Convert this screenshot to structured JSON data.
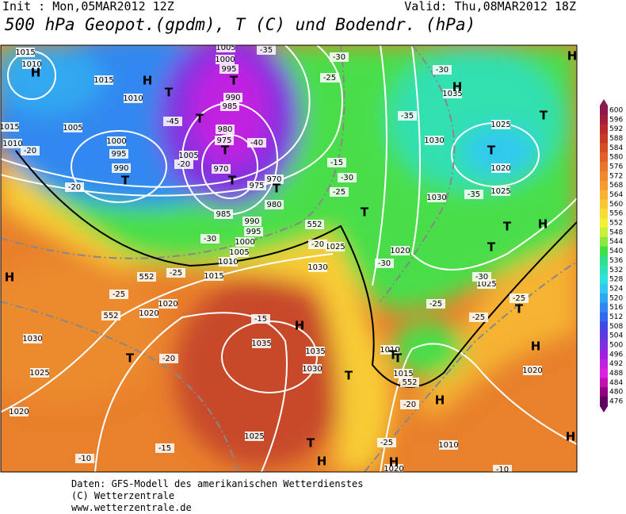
{
  "header": {
    "init": "Init : Mon,05MAR2012 12Z",
    "valid": "Valid: Thu,08MAR2012 18Z",
    "title": "500 hPa Geopot.(gpdm), T (C) und Bodendr. (hPa)"
  },
  "map_labels": [
    "1015",
    "1010",
    "1015",
    "1010",
    "1005",
    "1000",
    "995",
    "990",
    "1005",
    "970",
    "975",
    "970",
    "980",
    "985",
    "990",
    "995",
    "1000",
    "1005",
    "1010",
    "1015",
    "1005",
    "1000",
    "995",
    "990",
    "985",
    "980",
    "975",
    "1020",
    "1020",
    "1030",
    "1025",
    "1020",
    "1025",
    "1035",
    "1035",
    "1030",
    "1030",
    "1025",
    "1020",
    "1010",
    "1015",
    "1010",
    "1020",
    "1030",
    "1025",
    "1020",
    "1025",
    "1030",
    "1035",
    "1025",
    "1015",
    "1010",
    "1020",
    "-35",
    "-30",
    "-25",
    "-30",
    "-45",
    "-40",
    "-20",
    "-20",
    "-15",
    "-25",
    "-30",
    "-35",
    "-20",
    "-30",
    "-25",
    "-25",
    "-20",
    "-15",
    "-15",
    "-10",
    "-20",
    "-30",
    "-25",
    "-30",
    "-25",
    "-25",
    "-10",
    "-20",
    "-25",
    "-35",
    "H",
    "H",
    "H",
    "H",
    "H",
    "H",
    "H",
    "H",
    "H",
    "H",
    "H",
    "H",
    "T",
    "T",
    "T",
    "T",
    "T",
    "T",
    "T",
    "T",
    "T",
    "T",
    "T",
    "T",
    "T",
    "T",
    "T",
    "T",
    "T",
    "T",
    "552",
    "552",
    "552",
    "552"
  ],
  "colorbar": {
    "levels": [
      600,
      596,
      592,
      588,
      584,
      580,
      576,
      572,
      568,
      564,
      560,
      556,
      552,
      548,
      544,
      540,
      536,
      532,
      528,
      524,
      520,
      516,
      512,
      508,
      504,
      500,
      496,
      492,
      488,
      484,
      480,
      476
    ],
    "colors": [
      "#8c1a4c",
      "#a3203c",
      "#b82a2c",
      "#c93a26",
      "#d84c24",
      "#e26026",
      "#ea742a",
      "#f0882e",
      "#f49c30",
      "#f7b232",
      "#f8c834",
      "#f8dc34",
      "#f4f034",
      "#c8f038",
      "#8ce83c",
      "#40e048",
      "#30e088",
      "#30e0b8",
      "#30e0e0",
      "#30c8f0",
      "#30a8f0",
      "#3088f0",
      "#3068f0",
      "#4048e8",
      "#6038e0",
      "#8030e0",
      "#a020e0",
      "#c020e0",
      "#e020e0",
      "#c010b0",
      "#900080",
      "#600060"
    ]
  },
  "footer": [
    "Daten: GFS-Modell des amerikanischen Wetterdienstes",
    "(C) Wetterzentrale",
    "www.wetterzentrale.de"
  ]
}
